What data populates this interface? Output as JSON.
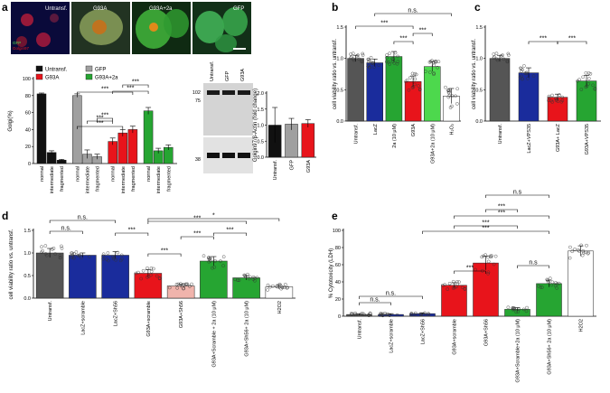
{
  "colors": {
    "untransf": "#555555",
    "gfp": "#a0a0a0",
    "lacz": "#1a2c9c",
    "g93a": "#e8141b",
    "g93a_2a": "#26a532",
    "light_green": "#4dd84d",
    "peach": "#f0b4ac",
    "white": "#ffffff",
    "axis": "#000000"
  },
  "panel_labels": {
    "a": "a",
    "b": "b",
    "c": "c",
    "d": "d",
    "e": "e"
  },
  "micro_labels": [
    "Untransf.",
    "G93A",
    "G93A+2a",
    "GFP"
  ],
  "micro_small": [
    "GFP",
    "Golgin97"
  ],
  "blot": {
    "lanes": [
      "Untransf.",
      "GFP",
      "G93A"
    ],
    "markers": [
      "102",
      "75",
      "38"
    ]
  },
  "chart_data": [
    {
      "id": "a_main",
      "type": "bar",
      "ylabel": "Golgi(%)",
      "ylim": [
        0,
        100
      ],
      "yticks": [
        "0",
        "20",
        "40",
        "60",
        "80",
        "100"
      ],
      "legend": [
        {
          "name": "Untransf.",
          "color": "#111111"
        },
        {
          "name": "GFP",
          "color": "#a0a0a0"
        },
        {
          "name": "G93A",
          "color": "#e8141b"
        },
        {
          "name": "G93A+2a",
          "color": "#26a532"
        }
      ],
      "categories": [
        "normal",
        "intermediate",
        "fragmented",
        "normal",
        "intermediate",
        "fragmented",
        "normal",
        "intermediate",
        "fragmented",
        "normal",
        "intermediate",
        "fragmented"
      ],
      "values": [
        82,
        13,
        4,
        80,
        11,
        8,
        26,
        36,
        40,
        62,
        15,
        19
      ],
      "errors": [
        1,
        2,
        1,
        2,
        5,
        3,
        4,
        4,
        4,
        4,
        3,
        3
      ],
      "bar_colors": [
        "#111111",
        "#111111",
        "#111111",
        "#a0a0a0",
        "#a0a0a0",
        "#a0a0a0",
        "#e8141b",
        "#e8141b",
        "#e8141b",
        "#26a532",
        "#26a532",
        "#26a532"
      ],
      "sig": [
        "***",
        "***",
        "***",
        "***",
        "***",
        "***"
      ]
    },
    {
      "id": "a_inset",
      "type": "bar",
      "ylabel": "Golgin97/β-Actin (fold change)",
      "ylim": [
        0,
        2
      ],
      "yticks": [
        "0.0",
        "0.5",
        "1.0",
        "1.5",
        "2.0"
      ],
      "categories": [
        "Untransf.",
        "GFP",
        "G93A"
      ],
      "values": [
        1.0,
        1.03,
        1.05
      ],
      "errors": [
        0.55,
        0.18,
        0.12
      ],
      "bar_colors": [
        "#111111",
        "#a0a0a0",
        "#e8141b"
      ]
    },
    {
      "id": "b",
      "type": "bar",
      "ylabel": "cell viability ratio vs. untransf.",
      "ylim": [
        0,
        1.5
      ],
      "yticks": [
        "0.0",
        "0.5",
        "1.0",
        "1.5"
      ],
      "categories": [
        "Untransf.",
        "LacZ",
        "2a (10 μM)",
        "G93A",
        "G93A+2a (10 μM)",
        "H₂O₂"
      ],
      "values": [
        1.0,
        0.93,
        1.03,
        0.63,
        0.87,
        0.4
      ],
      "errors": [
        0.05,
        0.06,
        0.08,
        0.09,
        0.08,
        0.12
      ],
      "bar_colors": [
        "#555555",
        "#1a2c9c",
        "#26a532",
        "#e8141b",
        "#4dd84d",
        "#ffffff"
      ],
      "sig": [
        "n.s.",
        "***",
        "***",
        "***"
      ]
    },
    {
      "id": "c",
      "type": "bar",
      "ylabel": "cell viability ratio vs. untransf.",
      "ylim": [
        0,
        1.5
      ],
      "yticks": [
        "0.0",
        "0.5",
        "1.0",
        "1.5"
      ],
      "categories": [
        "Untransf.",
        "LacZ+VPS35",
        "G93A+ LacZ",
        "G93A+VPS35"
      ],
      "values": [
        1.0,
        0.77,
        0.38,
        0.64
      ],
      "errors": [
        0.05,
        0.08,
        0.05,
        0.09
      ],
      "bar_colors": [
        "#555555",
        "#1a2c9c",
        "#e8141b",
        "#26a532"
      ],
      "sig": [
        "***",
        "***"
      ]
    },
    {
      "id": "d",
      "type": "bar",
      "ylabel": "cell viability ratio vs. untransf.",
      "ylim": [
        0,
        1.5
      ],
      "yticks": [
        "0.0",
        "0.5",
        "1.0",
        "1.5"
      ],
      "categories": [
        "Untransf.",
        "LacZ+scramble",
        "LacZ+Sh56",
        "G93A+scramble",
        "G93A+Sh56",
        "G93A+Scramble + 2a (10 μM)",
        "G93A+Sh56+ 2a (10 μM)",
        "H2O2"
      ],
      "values": [
        1.0,
        0.95,
        0.95,
        0.55,
        0.27,
        0.82,
        0.45,
        0.25
      ],
      "errors": [
        0.1,
        0.05,
        0.08,
        0.08,
        0.04,
        0.1,
        0.05,
        0.05
      ],
      "bar_colors": [
        "#555555",
        "#1a2c9c",
        "#1a2c9c",
        "#e8141b",
        "#f0b4ac",
        "#26a532",
        "#26a532",
        "#ffffff"
      ],
      "sig": [
        "n.s.",
        "n.s.",
        "***",
        "***",
        "***",
        "***",
        "***",
        "*"
      ]
    },
    {
      "id": "e",
      "type": "bar",
      "ylabel": "% Cytotoxicity (LDH)",
      "ylim": [
        0,
        100
      ],
      "yticks": [
        "0",
        "20",
        "40",
        "60",
        "80",
        "100"
      ],
      "categories": [
        "Untransf.",
        "LacZ+scramble",
        "LacZ+Sh56",
        "G93A+scramble",
        "G93A+Sh56",
        "G93A+Scramble+2a (10 μM)",
        "G93A+Sh56+ 2a (10 μM)",
        "H2O2"
      ],
      "values": [
        2,
        2,
        3,
        36,
        62,
        8,
        38,
        76
      ],
      "errors": [
        1,
        1,
        1,
        3,
        8,
        2,
        4,
        6
      ],
      "bar_colors": [
        "#555555",
        "#1a2c9c",
        "#1a2c9c",
        "#e8141b",
        "#e8141b",
        "#26a532",
        "#26a532",
        "#ffffff"
      ],
      "sig": [
        "n.s.",
        "n.s.",
        "***",
        "***",
        "***",
        "***",
        "n.s",
        "***",
        "n.s"
      ]
    }
  ]
}
